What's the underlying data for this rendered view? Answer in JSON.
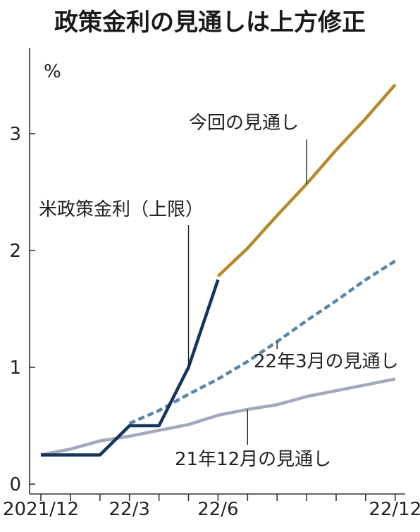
{
  "title": "政策金利の見通しは上方修正",
  "chart_data": {
    "type": "line",
    "ylabel": "%",
    "ylim": [
      0,
      3.5
    ],
    "yticks": [
      0,
      1,
      2,
      3
    ],
    "ytick_labels": [
      "0",
      "1",
      "2",
      "3"
    ],
    "x_range": [
      "2021-12",
      "2022-12"
    ],
    "xticks": [
      {
        "x": "2021-12",
        "label": "2021/12"
      },
      {
        "x": "2022-01",
        "label": ""
      },
      {
        "x": "2022-02",
        "label": ""
      },
      {
        "x": "2022-03",
        "label": "22/3"
      },
      {
        "x": "2022-04",
        "label": ""
      },
      {
        "x": "2022-05",
        "label": ""
      },
      {
        "x": "2022-06",
        "label": "22/6"
      },
      {
        "x": "2022-07",
        "label": ""
      },
      {
        "x": "2022-08",
        "label": ""
      },
      {
        "x": "2022-09",
        "label": ""
      },
      {
        "x": "2022-10",
        "label": ""
      },
      {
        "x": "2022-11",
        "label": ""
      },
      {
        "x": "2022-12",
        "label": "22/12"
      }
    ],
    "series": [
      {
        "name": "21年12月の見通し",
        "color": "#a4a8bb",
        "style": "solid",
        "points": [
          {
            "x": "2021-12",
            "y": 0.25
          },
          {
            "x": "2022-01",
            "y": 0.3
          },
          {
            "x": "2022-02",
            "y": 0.37
          },
          {
            "x": "2022-03",
            "y": 0.41
          },
          {
            "x": "2022-04",
            "y": 0.46
          },
          {
            "x": "2022-05",
            "y": 0.51
          },
          {
            "x": "2022-06",
            "y": 0.59
          },
          {
            "x": "2022-07",
            "y": 0.64
          },
          {
            "x": "2022-08",
            "y": 0.68
          },
          {
            "x": "2022-09",
            "y": 0.75
          },
          {
            "x": "2022-10",
            "y": 0.8
          },
          {
            "x": "2022-11",
            "y": 0.85
          },
          {
            "x": "2022-12",
            "y": 0.9
          }
        ]
      },
      {
        "name": "22年3月の見通し",
        "color": "#5a86a8",
        "style": "dashed",
        "points": [
          {
            "x": "2022-03",
            "y": 0.52
          },
          {
            "x": "2022-04",
            "y": 0.63
          },
          {
            "x": "2022-05",
            "y": 0.77
          },
          {
            "x": "2022-06",
            "y": 0.9
          },
          {
            "x": "2022-07",
            "y": 1.05
          },
          {
            "x": "2022-08",
            "y": 1.22
          },
          {
            "x": "2022-09",
            "y": 1.4
          },
          {
            "x": "2022-10",
            "y": 1.57
          },
          {
            "x": "2022-11",
            "y": 1.75
          },
          {
            "x": "2022-12",
            "y": 1.91
          }
        ]
      },
      {
        "name": "米政策金利（上限）",
        "color": "#12355e",
        "style": "solid",
        "points": [
          {
            "x": "2021-12",
            "y": 0.25
          },
          {
            "x": "2022-02",
            "y": 0.25
          },
          {
            "x": "2022-03",
            "y": 0.5
          },
          {
            "x": "2022-04",
            "y": 0.5
          },
          {
            "x": "2022-05",
            "y": 1.0
          },
          {
            "x": "2022-06",
            "y": 1.75
          }
        ]
      },
      {
        "name": "今回の見通し",
        "color": "#b58a2b",
        "style": "solid",
        "points": [
          {
            "x": "2022-06",
            "y": 1.78
          },
          {
            "x": "2022-07",
            "y": 2.02
          },
          {
            "x": "2022-08",
            "y": 2.3
          },
          {
            "x": "2022-09",
            "y": 2.57
          },
          {
            "x": "2022-10",
            "y": 2.86
          },
          {
            "x": "2022-11",
            "y": 3.13
          },
          {
            "x": "2022-12",
            "y": 3.42
          }
        ]
      }
    ],
    "annotations": [
      {
        "text": "今回の見通し",
        "series": "今回の見通し",
        "at_x": "2022-09"
      },
      {
        "text": "米政策金利（上限）",
        "series": "米政策金利（上限）",
        "at_x": "2022-05"
      },
      {
        "text": "22年3月の見通し",
        "series": "22年3月の見通し",
        "at_x": "2022-08"
      },
      {
        "text": "21年12月の見通し",
        "series": "21年12月の見通し",
        "at_x": "2022-07"
      }
    ]
  }
}
